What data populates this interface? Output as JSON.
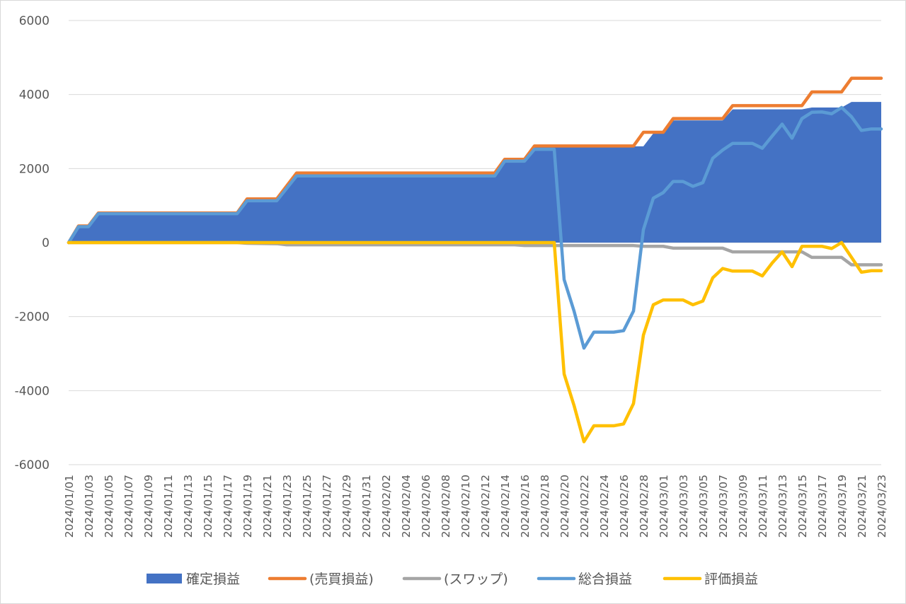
{
  "chart_data": {
    "type": "line",
    "title": "",
    "xlabel": "",
    "ylabel": "",
    "ylim": [
      -6000,
      6000
    ],
    "yticks": [
      6000,
      4000,
      2000,
      0,
      -2000,
      -4000,
      -6000
    ],
    "grid": "horizontal",
    "legend_position": "bottom",
    "x_start": "2024/01/01",
    "x_end": "2024/03/23",
    "x_tick_labels": [
      "2024/01/01",
      "2024/01/03",
      "2024/01/05",
      "2024/01/07",
      "2024/01/09",
      "2024/01/11",
      "2024/01/13",
      "2024/01/15",
      "2024/01/17",
      "2024/01/19",
      "2024/01/21",
      "2024/01/23",
      "2024/01/25",
      "2024/01/27",
      "2024/01/29",
      "2024/01/31",
      "2024/02/02",
      "2024/02/04",
      "2024/02/06",
      "2024/02/08",
      "2024/02/10",
      "2024/02/12",
      "2024/02/14",
      "2024/02/16",
      "2024/02/18",
      "2024/02/20",
      "2024/02/22",
      "2024/02/24",
      "2024/02/26",
      "2024/02/28",
      "2024/03/01",
      "2024/03/03",
      "2024/03/05",
      "2024/03/07",
      "2024/03/09",
      "2024/03/11",
      "2024/03/13",
      "2024/03/15",
      "2024/03/17",
      "2024/03/19",
      "2024/03/21",
      "2024/03/23"
    ],
    "series": [
      {
        "name": "確定損益",
        "kind": "area",
        "color": "#4472c4",
        "points": [
          [
            "2024/01/01",
            0
          ],
          [
            "2024/01/02",
            450
          ],
          [
            "2024/01/03",
            450
          ],
          [
            "2024/01/04",
            800
          ],
          [
            "2024/01/18",
            800
          ],
          [
            "2024/01/19",
            1150
          ],
          [
            "2024/01/22",
            1150
          ],
          [
            "2024/01/24",
            1850
          ],
          [
            "2024/02/13",
            1850
          ],
          [
            "2024/02/14",
            2250
          ],
          [
            "2024/02/16",
            2250
          ],
          [
            "2024/02/17",
            2600
          ],
          [
            "2024/02/28",
            2600
          ],
          [
            "2024/02/29",
            2950
          ],
          [
            "2024/03/01",
            2950
          ],
          [
            "2024/03/02",
            3300
          ],
          [
            "2024/03/07",
            3300
          ],
          [
            "2024/03/08",
            3600
          ],
          [
            "2024/03/15",
            3600
          ],
          [
            "2024/03/16",
            3650
          ],
          [
            "2024/03/19",
            3650
          ],
          [
            "2024/03/20",
            3800
          ],
          [
            "2024/03/23",
            3800
          ]
        ]
      },
      {
        "name": "(売買損益)",
        "kind": "line",
        "color": "#ed7d31",
        "points": [
          [
            "2024/01/01",
            0
          ],
          [
            "2024/01/02",
            450
          ],
          [
            "2024/01/03",
            450
          ],
          [
            "2024/01/04",
            800
          ],
          [
            "2024/01/18",
            800
          ],
          [
            "2024/01/19",
            1180
          ],
          [
            "2024/01/22",
            1180
          ],
          [
            "2024/01/24",
            1880
          ],
          [
            "2024/02/13",
            1880
          ],
          [
            "2024/02/14",
            2250
          ],
          [
            "2024/02/16",
            2250
          ],
          [
            "2024/02/17",
            2610
          ],
          [
            "2024/02/27",
            2610
          ],
          [
            "2024/02/28",
            2980
          ],
          [
            "2024/03/01",
            2980
          ],
          [
            "2024/03/02",
            3350
          ],
          [
            "2024/03/07",
            3350
          ],
          [
            "2024/03/08",
            3700
          ],
          [
            "2024/03/15",
            3700
          ],
          [
            "2024/03/16",
            4070
          ],
          [
            "2024/03/19",
            4070
          ],
          [
            "2024/03/20",
            4440
          ],
          [
            "2024/03/23",
            4440
          ]
        ]
      },
      {
        "name": "(スワップ)",
        "kind": "line",
        "color": "#a5a5a5",
        "points": [
          [
            "2024/01/01",
            0
          ],
          [
            "2024/01/18",
            0
          ],
          [
            "2024/01/19",
            -20
          ],
          [
            "2024/01/22",
            -30
          ],
          [
            "2024/01/23",
            -60
          ],
          [
            "2024/02/15",
            -60
          ],
          [
            "2024/02/16",
            -80
          ],
          [
            "2024/02/27",
            -80
          ],
          [
            "2024/02/28",
            -100
          ],
          [
            "2024/03/01",
            -100
          ],
          [
            "2024/03/02",
            -150
          ],
          [
            "2024/03/07",
            -150
          ],
          [
            "2024/03/08",
            -250
          ],
          [
            "2024/03/15",
            -250
          ],
          [
            "2024/03/16",
            -400
          ],
          [
            "2024/03/19",
            -400
          ],
          [
            "2024/03/20",
            -600
          ],
          [
            "2024/03/23",
            -600
          ]
        ]
      },
      {
        "name": "総合損益",
        "kind": "line",
        "color": "#5b9bd5",
        "points": [
          [
            "2024/01/01",
            0
          ],
          [
            "2024/01/02",
            430
          ],
          [
            "2024/01/03",
            430
          ],
          [
            "2024/01/04",
            780
          ],
          [
            "2024/01/18",
            780
          ],
          [
            "2024/01/19",
            1130
          ],
          [
            "2024/01/22",
            1130
          ],
          [
            "2024/01/24",
            1800
          ],
          [
            "2024/02/13",
            1800
          ],
          [
            "2024/02/14",
            2200
          ],
          [
            "2024/02/16",
            2200
          ],
          [
            "2024/02/17",
            2520
          ],
          [
            "2024/02/19",
            2520
          ],
          [
            "2024/02/20",
            -1000
          ],
          [
            "2024/02/21",
            -1850
          ],
          [
            "2024/02/22",
            -2850
          ],
          [
            "2024/02/23",
            -2420
          ],
          [
            "2024/02/25",
            -2420
          ],
          [
            "2024/02/26",
            -2380
          ],
          [
            "2024/02/27",
            -1850
          ],
          [
            "2024/02/28",
            350
          ],
          [
            "2024/02/29",
            1200
          ],
          [
            "2024/03/01",
            1350
          ],
          [
            "2024/03/02",
            1650
          ],
          [
            "2024/03/03",
            1650
          ],
          [
            "2024/03/04",
            1520
          ],
          [
            "2024/03/05",
            1620
          ],
          [
            "2024/03/06",
            2280
          ],
          [
            "2024/03/07",
            2500
          ],
          [
            "2024/03/08",
            2680
          ],
          [
            "2024/03/10",
            2680
          ],
          [
            "2024/03/11",
            2550
          ],
          [
            "2024/03/12",
            2880
          ],
          [
            "2024/03/13",
            3200
          ],
          [
            "2024/03/14",
            2820
          ],
          [
            "2024/03/15",
            3350
          ],
          [
            "2024/03/16",
            3520
          ],
          [
            "2024/03/17",
            3530
          ],
          [
            "2024/03/18",
            3480
          ],
          [
            "2024/03/19",
            3650
          ],
          [
            "2024/03/20",
            3400
          ],
          [
            "2024/03/21",
            3030
          ],
          [
            "2024/03/22",
            3070
          ],
          [
            "2024/03/23",
            3070
          ]
        ]
      },
      {
        "name": "評価損益",
        "kind": "line",
        "color": "#ffc000",
        "points": [
          [
            "2024/01/01",
            0
          ],
          [
            "2024/02/19",
            0
          ],
          [
            "2024/02/20",
            -3550
          ],
          [
            "2024/02/21",
            -4400
          ],
          [
            "2024/02/22",
            -5380
          ],
          [
            "2024/02/23",
            -4950
          ],
          [
            "2024/02/25",
            -4950
          ],
          [
            "2024/02/26",
            -4900
          ],
          [
            "2024/02/27",
            -4350
          ],
          [
            "2024/02/28",
            -2500
          ],
          [
            "2024/02/29",
            -1680
          ],
          [
            "2024/03/01",
            -1550
          ],
          [
            "2024/03/03",
            -1550
          ],
          [
            "2024/03/04",
            -1680
          ],
          [
            "2024/03/05",
            -1580
          ],
          [
            "2024/03/06",
            -950
          ],
          [
            "2024/03/07",
            -700
          ],
          [
            "2024/03/08",
            -770
          ],
          [
            "2024/03/10",
            -770
          ],
          [
            "2024/03/11",
            -900
          ],
          [
            "2024/03/12",
            -550
          ],
          [
            "2024/03/13",
            -250
          ],
          [
            "2024/03/14",
            -650
          ],
          [
            "2024/03/15",
            -100
          ],
          [
            "2024/03/17",
            -100
          ],
          [
            "2024/03/18",
            -160
          ],
          [
            "2024/03/19",
            0
          ],
          [
            "2024/03/20",
            -400
          ],
          [
            "2024/03/21",
            -800
          ],
          [
            "2024/03/22",
            -760
          ],
          [
            "2024/03/23",
            -760
          ]
        ]
      }
    ]
  }
}
